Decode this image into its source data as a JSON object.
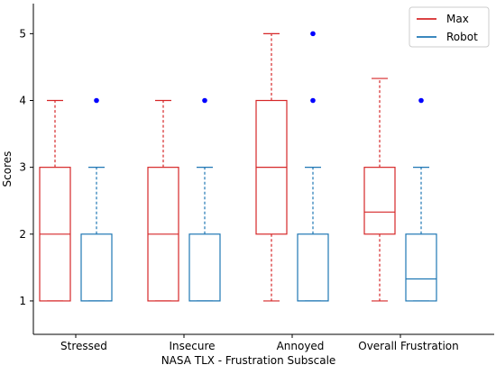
{
  "chart_data": {
    "type": "boxplot",
    "categories": [
      "Stressed",
      "Insecure",
      "Annoyed",
      "Overall Frustration"
    ],
    "xlabel": "NASA TLX - Frustration Subscale",
    "ylabel": "Scores",
    "ylim": [
      0.5,
      5.45
    ],
    "yticks": [
      1,
      2,
      3,
      4,
      5
    ],
    "legend_position": "top-right",
    "series": [
      {
        "name": "Max",
        "color": "#d62728",
        "whisker_style": "dashed",
        "boxes": [
          {
            "min": 1,
            "q1": 1,
            "median": 2,
            "q3": 3,
            "max": 4,
            "outliers": []
          },
          {
            "min": 1,
            "q1": 1,
            "median": 2,
            "q3": 3,
            "max": 4,
            "outliers": []
          },
          {
            "min": 1,
            "q1": 2,
            "median": 3,
            "q3": 4,
            "max": 5,
            "outliers": []
          },
          {
            "min": 1,
            "q1": 2,
            "median": 2.33,
            "q3": 3,
            "max": 4.33,
            "outliers": []
          }
        ]
      },
      {
        "name": "Robot",
        "color": "#1f77b4",
        "whisker_style": "dashed",
        "outlier_color": "#0000ff",
        "boxes": [
          {
            "min": 1,
            "q1": 1,
            "median": 1,
            "q3": 2,
            "max": 3,
            "outliers": [
              4
            ]
          },
          {
            "min": 1,
            "q1": 1,
            "median": 1,
            "q3": 2,
            "max": 3,
            "outliers": [
              4
            ]
          },
          {
            "min": 1,
            "q1": 1,
            "median": 1,
            "q3": 2,
            "max": 3,
            "outliers": [
              4,
              5
            ]
          },
          {
            "min": 1,
            "q1": 1,
            "median": 1.33,
            "q3": 2,
            "max": 3,
            "outliers": [
              4
            ]
          }
        ]
      }
    ]
  }
}
